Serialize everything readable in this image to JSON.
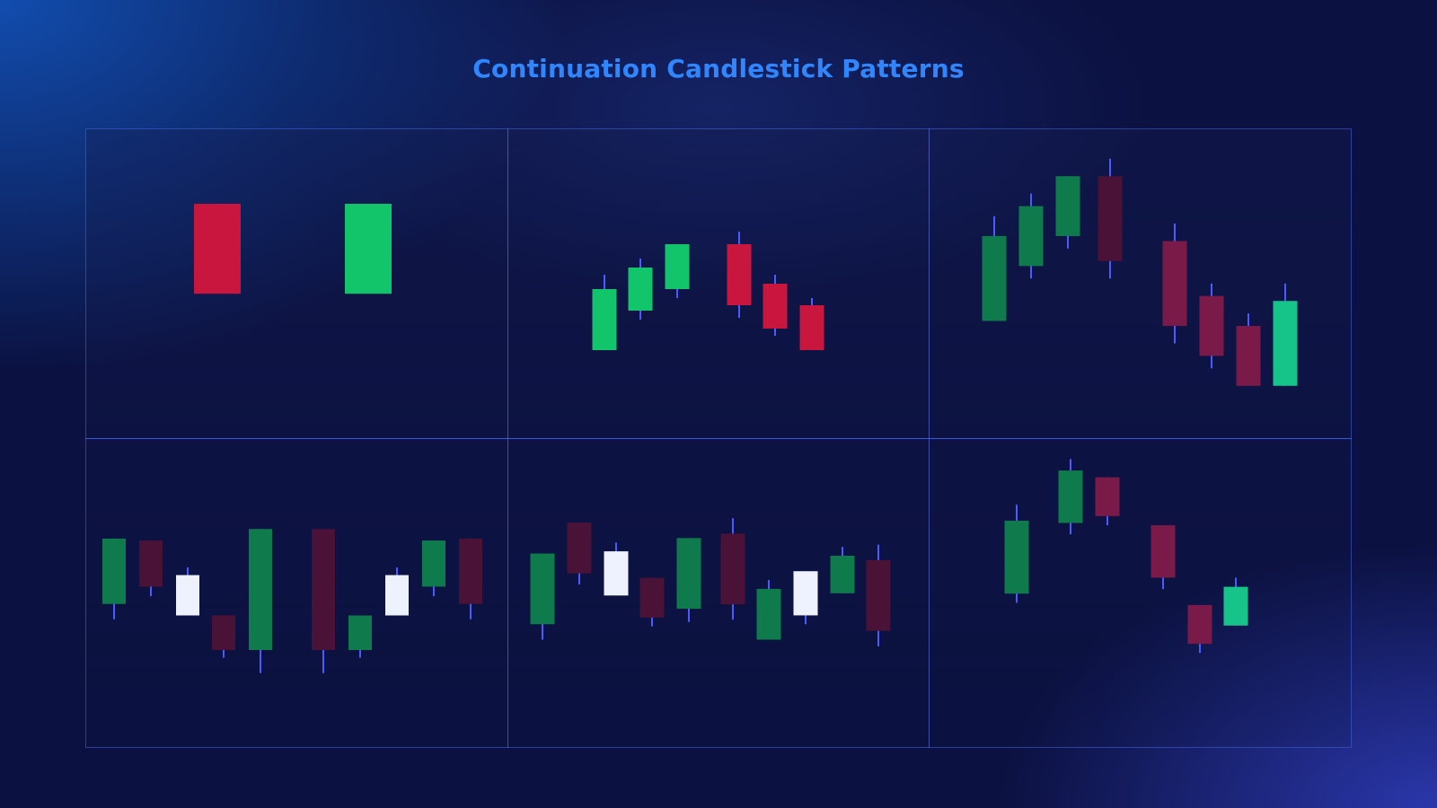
{
  "title": "Continuation Candlestick Patterns",
  "colors": {
    "title": "#2f86ff",
    "wick": "#4a5cff",
    "bull_bright": "#12c46a",
    "bull_dark": "#0f7a4c",
    "bull_teal": "#16c48a",
    "bear_bright": "#c8163f",
    "bear_mid": "#7a1a48",
    "bear_dark": "#4a1236",
    "neutral_white": "#eef2ff"
  },
  "panels": [
    {
      "name": "panel-1",
      "candles": [
        {
          "open": 100,
          "close": 40,
          "high": 100,
          "low": 40,
          "color": "bear_bright",
          "wick": false
        },
        {
          "open": 40,
          "close": 100,
          "high": 100,
          "low": 40,
          "color": "bull_bright",
          "wick": false
        }
      ]
    },
    {
      "name": "panel-2",
      "candles": [
        {
          "open": 10,
          "close": 44,
          "high": 52,
          "low": 10,
          "color": "bull_bright"
        },
        {
          "open": 32,
          "close": 56,
          "high": 61,
          "low": 27,
          "color": "bull_bright"
        },
        {
          "open": 44,
          "close": 69,
          "high": 69,
          "low": 39,
          "color": "bull_bright"
        },
        {
          "open": 69,
          "close": 35,
          "high": 76,
          "low": 28,
          "color": "bear_bright"
        },
        {
          "open": 47,
          "close": 22,
          "high": 52,
          "low": 18,
          "color": "bear_bright"
        },
        {
          "open": 35,
          "close": 10,
          "high": 39,
          "low": 10,
          "color": "bear_bright"
        }
      ]
    },
    {
      "name": "panel-3",
      "candles": [
        {
          "open": 34,
          "close": 68,
          "high": 76,
          "low": 34,
          "color": "bull_dark"
        },
        {
          "open": 56,
          "close": 80,
          "high": 85,
          "low": 51,
          "color": "bull_dark"
        },
        {
          "open": 68,
          "close": 92,
          "high": 92,
          "low": 63,
          "color": "bull_dark"
        },
        {
          "open": 92,
          "close": 58,
          "high": 99,
          "low": 51,
          "color": "bear_dark"
        },
        {
          "open": 66,
          "close": 32,
          "high": 73,
          "low": 25,
          "color": "bear_mid"
        },
        {
          "open": 44,
          "close": 20,
          "high": 49,
          "low": 15,
          "color": "bear_mid"
        },
        {
          "open": 32,
          "close": 8,
          "high": 37,
          "low": 8,
          "color": "bear_mid"
        },
        {
          "open": 8,
          "close": 42,
          "high": 49,
          "low": 8,
          "color": "bull_teal"
        }
      ]
    },
    {
      "name": "panel-4",
      "candles": [
        {
          "open": 38,
          "close": 72,
          "high": 72,
          "low": 30,
          "color": "bull_dark"
        },
        {
          "open": 71,
          "close": 47,
          "high": 71,
          "low": 42,
          "color": "bear_dark"
        },
        {
          "open": 32,
          "close": 53,
          "high": 57,
          "low": 32,
          "color": "neutral_white"
        },
        {
          "open": 32,
          "close": 14,
          "high": 32,
          "low": 10,
          "color": "bear_dark"
        },
        {
          "open": 14,
          "close": 77,
          "high": 77,
          "low": 2,
          "color": "bull_dark"
        },
        {
          "open": 77,
          "close": 14,
          "high": 77,
          "low": 2,
          "color": "bear_dark"
        },
        {
          "open": 14,
          "close": 32,
          "high": 32,
          "low": 10,
          "color": "bull_dark"
        },
        {
          "open": 32,
          "close": 53,
          "high": 57,
          "low": 32,
          "color": "neutral_white"
        },
        {
          "open": 47,
          "close": 71,
          "high": 71,
          "low": 42,
          "color": "bull_dark"
        },
        {
          "open": 72,
          "close": 38,
          "high": 72,
          "low": 30,
          "color": "bear_dark"
        }
      ]
    },
    {
      "name": "panel-5",
      "candles": [
        {
          "open": 32,
          "close": 64,
          "high": 64,
          "low": 25,
          "color": "bull_dark"
        },
        {
          "open": 78,
          "close": 55,
          "high": 78,
          "low": 50,
          "color": "bear_dark"
        },
        {
          "open": 45,
          "close": 65,
          "high": 69,
          "low": 45,
          "color": "neutral_white"
        },
        {
          "open": 53,
          "close": 35,
          "high": 53,
          "low": 31,
          "color": "bear_dark"
        },
        {
          "open": 39,
          "close": 71,
          "high": 71,
          "low": 33,
          "color": "bull_dark"
        },
        {
          "open": 73,
          "close": 41,
          "high": 80,
          "low": 34,
          "color": "bear_dark"
        },
        {
          "open": 25,
          "close": 48,
          "high": 52,
          "low": 25,
          "color": "bull_dark"
        },
        {
          "open": 36,
          "close": 56,
          "high": 56,
          "low": 32,
          "color": "neutral_white"
        },
        {
          "open": 46,
          "close": 63,
          "high": 67,
          "low": 46,
          "color": "bull_dark"
        },
        {
          "open": 61,
          "close": 29,
          "high": 68,
          "low": 22,
          "color": "bear_dark"
        }
      ]
    },
    {
      "name": "panel-6",
      "candles": [
        {
          "open": 44,
          "close": 76,
          "high": 83,
          "low": 40,
          "color": "bull_dark"
        },
        {
          "open": 75,
          "close": 98,
          "high": 103,
          "low": 70,
          "color": "bull_dark"
        },
        {
          "open": 95,
          "close": 78,
          "high": 95,
          "low": 74,
          "color": "bear_mid"
        },
        {
          "open": 74,
          "close": 51,
          "high": 74,
          "low": 46,
          "color": "bear_mid"
        },
        {
          "open": 39,
          "close": 22,
          "high": 39,
          "low": 18,
          "color": "bear_mid"
        },
        {
          "open": 30,
          "close": 47,
          "high": 51,
          "low": 30,
          "color": "bull_teal"
        }
      ]
    }
  ]
}
